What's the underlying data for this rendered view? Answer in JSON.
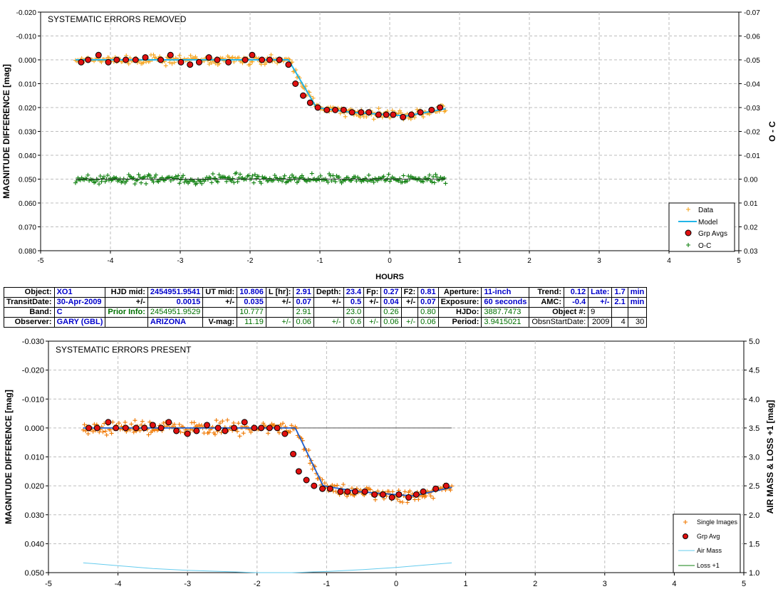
{
  "chart_data": [
    {
      "type": "scatter",
      "title": "SYSTEMATIC ERRORS REMOVED",
      "xlabel": "HOURS",
      "ylabel": "MAGNITUDE DIFFERENCE [mag]",
      "y2label": "O - C",
      "xlim": [
        -5,
        5
      ],
      "ylim": [
        -0.02,
        0.08
      ],
      "y_inverted": true,
      "y2lim": [
        -0.07,
        0.03
      ],
      "y2_inverted": true,
      "grid": true,
      "legend_position": "bottom-right",
      "x_ticks": [
        "-5",
        "-4",
        "-3",
        "-2",
        "-1",
        "0",
        "1",
        "2",
        "3",
        "4",
        "5"
      ],
      "y_ticks": [
        "-0.020",
        "-0.010",
        "0.000",
        "0.010",
        "0.020",
        "0.030",
        "0.040",
        "0.050",
        "0.060",
        "0.070",
        "0.080"
      ],
      "y2_ticks": [
        "-0.07",
        "-0.06",
        "-0.05",
        "-0.04",
        "-0.03",
        "-0.02",
        "-0.01",
        "0.00",
        "0.01",
        "0.02",
        "0.03"
      ],
      "series": [
        {
          "name": "Data",
          "color": "#f5a623",
          "marker": "plus",
          "scatter": 0.0016,
          "offset": 0
        },
        {
          "name": "Model",
          "color": "#22b5e8",
          "marker": "line"
        },
        {
          "name": "Grp Avgs",
          "color": "#e01010",
          "marker": "dot",
          "x": [
            -4.42,
            -4.32,
            -4.17,
            -4.03,
            -3.91,
            -3.78,
            -3.64,
            -3.5,
            -3.28,
            -3.14,
            -2.99,
            -2.86,
            -2.73,
            -2.59,
            -2.47,
            -2.31,
            -2.07,
            -1.97,
            -1.83,
            -1.72,
            -1.58,
            -1.45,
            -1.35,
            -1.24,
            -1.14,
            -1.03,
            -0.9,
            -0.78,
            -0.66,
            -0.54,
            -0.41,
            -0.3,
            -0.16,
            -0.05,
            0.05,
            0.19,
            0.31,
            0.44,
            0.6,
            0.72
          ],
          "y": [
            0.001,
            0.0,
            -0.002,
            0.001,
            0.0,
            0.0,
            0.0,
            -0.001,
            0.0,
            -0.002,
            0.001,
            0.002,
            0.001,
            -0.001,
            0.0,
            0.001,
            0.0,
            -0.002,
            0.0,
            0.0,
            0.0,
            0.002,
            0.01,
            0.015,
            0.018,
            0.02,
            0.021,
            0.021,
            0.021,
            0.022,
            0.022,
            0.022,
            0.023,
            0.023,
            0.023,
            0.024,
            0.023,
            0.022,
            0.021,
            0.02
          ]
        },
        {
          "name": "O-C",
          "color": "#108010",
          "marker": "plus",
          "axis": "y2",
          "scatter": 0.0016,
          "offset": 0.0
        }
      ]
    },
    {
      "type": "scatter",
      "title": "SYSTEMATIC ERRORS PRESENT",
      "xlabel": "",
      "ylabel": "MAGNITUDE DIFFERENCE [mag]",
      "y2label": "AIR MASS & LOSS +1 [mag]",
      "xlim": [
        -5,
        5
      ],
      "ylim": [
        -0.03,
        0.05
      ],
      "y_inverted": true,
      "y2lim": [
        1.0,
        5.0
      ],
      "grid": true,
      "legend_position": "bottom-right",
      "x_ticks": [
        "-5",
        "-4",
        "-3",
        "-2",
        "-1",
        "0",
        "1",
        "2",
        "3",
        "4",
        "5"
      ],
      "y_ticks": [
        "-0.030",
        "-0.020",
        "-0.010",
        "0.000",
        "0.010",
        "0.020",
        "0.030",
        "0.040",
        "0.050"
      ],
      "y2_ticks": [
        "1.0",
        "1.5",
        "2.0",
        "2.5",
        "3.0",
        "3.5",
        "4.0",
        "4.5",
        "5.0"
      ],
      "series": [
        {
          "name": "Single Images",
          "color": "#f07800",
          "marker": "plus",
          "scatter": 0.0019,
          "offset": 0
        },
        {
          "name": "Grp Avg",
          "color": "#e01010",
          "marker": "dot",
          "x": [
            -4.42,
            -4.3,
            -4.14,
            -4.03,
            -3.89,
            -3.74,
            -3.62,
            -3.5,
            -3.38,
            -3.27,
            -3.16,
            -3.0,
            -2.87,
            -2.72,
            -2.56,
            -2.46,
            -2.33,
            -2.18,
            -2.04,
            -1.94,
            -1.82,
            -1.71,
            -1.6,
            -1.48,
            -1.4,
            -1.29,
            -1.18,
            -1.06,
            -0.95,
            -0.8,
            -0.7,
            -0.59,
            -0.45,
            -0.31,
            -0.19,
            -0.06,
            0.04,
            0.18,
            0.29,
            0.39,
            0.57,
            0.72
          ],
          "y": [
            0.0,
            0.0,
            -0.002,
            0.0,
            0.0,
            0.0,
            0.0,
            -0.001,
            0.0,
            -0.002,
            0.001,
            0.002,
            0.001,
            -0.001,
            0.0,
            0.001,
            0.0,
            -0.002,
            0.0,
            0.0,
            0.0,
            0.0,
            0.002,
            0.009,
            0.015,
            0.018,
            0.02,
            0.021,
            0.021,
            0.022,
            0.022,
            0.022,
            0.022,
            0.023,
            0.023,
            0.024,
            0.023,
            0.024,
            0.023,
            0.022,
            0.021,
            0.02
          ]
        },
        {
          "name": "Air Mass",
          "color": "#66ccee",
          "marker": "line",
          "axis": "y2",
          "x": [
            -4.5,
            -4.0,
            -3.5,
            -3.0,
            -2.5,
            -2.0,
            -1.5,
            -1.0,
            -0.5,
            0.0,
            0.5,
            0.8
          ],
          "y": [
            1.17,
            1.12,
            1.07,
            1.04,
            1.02,
            1.0,
            1.0,
            1.02,
            1.05,
            1.09,
            1.14,
            1.17
          ]
        },
        {
          "name": "Loss +1",
          "color": "#108010",
          "marker": "line",
          "axis": "y2"
        }
      ]
    }
  ],
  "info_table": {
    "r1": {
      "object_label": "Object:",
      "object": "XO1",
      "hjd_mid_label": "HJD mid:",
      "hjd_mid": "2454951.9541",
      "ut_mid_label": "UT mid:",
      "ut_mid": "10.806",
      "l_label": "L [hr]:",
      "l": "2.91",
      "depth_label": "Depth:",
      "depth": "23.4",
      "fp_label": "Fp:",
      "fp": "0.27",
      "f2_label": "F2:",
      "f2": "0.81",
      "aperture_label": "Aperture:",
      "aperture": "11-inch",
      "trend_label": "Trend:",
      "trend": "0.12",
      "late_label": "Late:",
      "late": "1.7",
      "late_unit": "min"
    },
    "r2": {
      "transit_label": "TransitDate:",
      "transit": "30-Apr-2009",
      "pm1": "+/-",
      "hjd_err": "0.0015",
      "pm2": "+/-",
      "ut_err": "0.035",
      "pm3": "+/-",
      "l_err": "0.07",
      "pm4": "+/-",
      "depth_err": "0.5",
      "pm5": "+/-",
      "fp_err": "0.04",
      "pm6": "+/-",
      "f2_err": "0.07",
      "exposure_label": "Exposure:",
      "exposure": "60 seconds",
      "amc_label": "AMC:",
      "amc": "-0.4",
      "pm7": "+/-",
      "late_err": "2.1",
      "late_err_unit": "min"
    },
    "r3": {
      "band_label": "Band:",
      "band": "C",
      "prior_label": "Prior Info:",
      "prior_hjd": "2454951.9529",
      "prior_ut": "10.777",
      "prior_l": "2.91",
      "prior_depth": "23.0",
      "prior_fp": "0.26",
      "prior_f2": "0.80",
      "hjdo_label": "HJDo:",
      "hjdo": "3887.7473",
      "objnum_label": "Object #:",
      "objnum": "9"
    },
    "r4": {
      "observer_label": "Observer:",
      "observer": "GARY (GBL)",
      "location": "ARIZONA",
      "vmag_label": "V-mag:",
      "vmag": "11.19",
      "pm1": "+/-",
      "vmag_err": "0.06",
      "pm2": "+/-",
      "e1": "0.6",
      "pm3": "+/-",
      "e2": "0.06",
      "pm4": "+/-",
      "e3": "0.06",
      "period_label": "Period:",
      "period": "3.9415021",
      "obsn_label": "ObsnStartDate:",
      "obsn_y": "2009",
      "obsn_m": "4",
      "obsn_d": "30"
    }
  }
}
